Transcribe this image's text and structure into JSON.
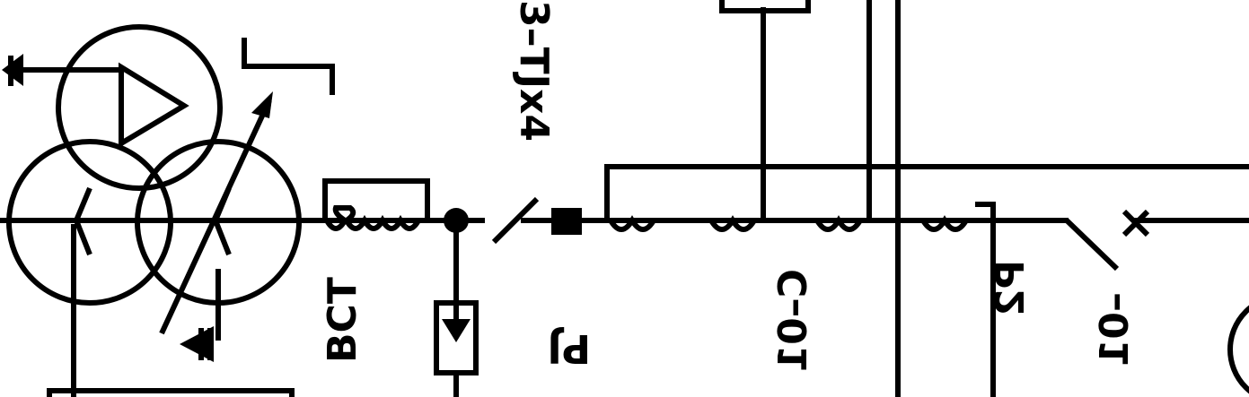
{
  "labels": {
    "bct": "BCT",
    "pj": "PJ",
    "p2": "P2",
    "tj_3x4": "3–ТJx4",
    "tj_lower": "C–01",
    "ol": "–01"
  }
}
